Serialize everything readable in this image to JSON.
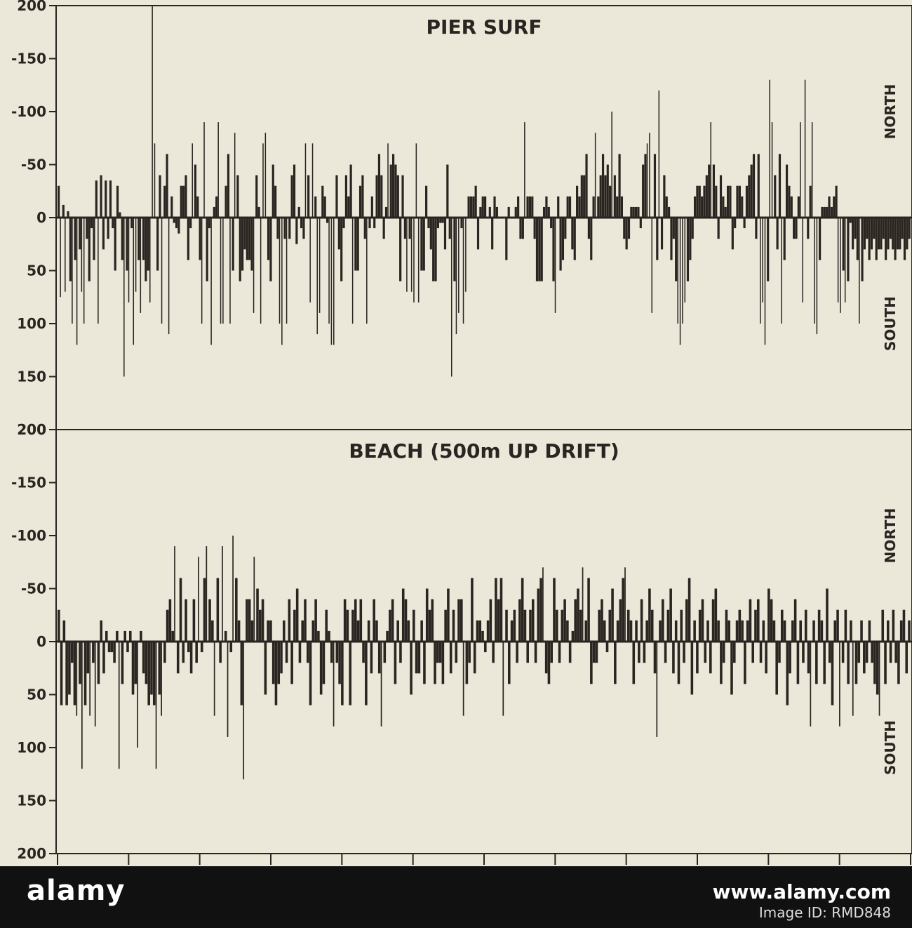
{
  "chart_data": [
    {
      "type": "bar",
      "title": "PIER SURF",
      "direction_labels": {
        "positive": "NORTH",
        "negative": "SOUTH"
      },
      "y_ticks": [
        {
          "value": 200,
          "label": "200"
        },
        {
          "value": 150,
          "label": "-150"
        },
        {
          "value": 100,
          "label": "-100"
        },
        {
          "value": 50,
          "label": "-50"
        },
        {
          "value": 0,
          "label": "0"
        },
        {
          "value": -50,
          "label": "50"
        },
        {
          "value": -100,
          "label": "100"
        },
        {
          "value": -150,
          "label": "150"
        },
        {
          "value": -200,
          "label": "200"
        }
      ],
      "ylim": [
        -200,
        200
      ],
      "series": [
        {
          "values": [
            30,
            -75,
            12,
            -70,
            6,
            -60,
            -100,
            -40,
            -120,
            -30,
            -70,
            -100,
            -20,
            -60,
            -10,
            -40,
            35,
            -100,
            40,
            -30,
            35,
            -20,
            35,
            -10,
            -50,
            30,
            5,
            -40,
            -150,
            -50,
            -80,
            -10,
            -120,
            -70,
            -40,
            -90,
            -40,
            -60,
            -50,
            -80,
            200,
            70,
            -50,
            40,
            -100,
            30,
            60,
            -110,
            20,
            -5,
            -10,
            -15,
            30,
            30,
            40,
            -40,
            -10,
            70,
            50,
            20,
            -40,
            -100,
            90,
            -60,
            -10,
            -120,
            10,
            20,
            90,
            -100,
            -100,
            30,
            60,
            -100,
            -50,
            80,
            40,
            -60,
            -50,
            -30,
            -40,
            -40,
            -50,
            -90,
            40,
            10,
            -100,
            70,
            80,
            -40,
            -60,
            50,
            30,
            -20,
            -100,
            -120,
            -20,
            -100,
            -20,
            40,
            50,
            -25,
            10,
            -10,
            -20,
            70,
            40,
            -80,
            70,
            20,
            -110,
            -90,
            30,
            20,
            -5,
            -100,
            -120,
            -120,
            40,
            -30,
            -60,
            -10,
            40,
            20,
            50,
            -100,
            -50,
            -50,
            30,
            40,
            -20,
            -100,
            -10,
            20,
            -10,
            40,
            60,
            40,
            -20,
            10,
            70,
            50,
            60,
            50,
            40,
            -60,
            40,
            -20,
            -70,
            -20,
            -70,
            -80,
            70,
            -80,
            -50,
            -50,
            30,
            -10,
            -30,
            -60,
            -60,
            -10,
            -5,
            -5,
            -30,
            50,
            -20,
            -150,
            -60,
            -110,
            -90,
            -10,
            -100,
            -70,
            20,
            20,
            20,
            30,
            -30,
            10,
            20,
            20,
            0,
            10,
            -30,
            20,
            10,
            0,
            0,
            0,
            -40,
            10,
            0,
            0,
            10,
            20,
            -20,
            -20,
            90,
            20,
            20,
            20,
            -20,
            -60,
            -60,
            -60,
            10,
            20,
            10,
            -10,
            -60,
            -90,
            20,
            -50,
            -40,
            -20,
            20,
            20,
            -30,
            -40,
            30,
            20,
            40,
            40,
            60,
            -20,
            -40,
            20,
            80,
            20,
            40,
            60,
            40,
            50,
            30,
            100,
            40,
            20,
            60,
            20,
            -20,
            -30,
            -20,
            10,
            10,
            10,
            10,
            -10,
            50,
            60,
            70,
            80,
            -90,
            60,
            -40,
            120,
            -30,
            40,
            20,
            10,
            -40,
            -20,
            -60,
            -100,
            -120,
            -100,
            -80,
            -60,
            -40,
            -20,
            20,
            30,
            30,
            20,
            30,
            40,
            50,
            90,
            50,
            30,
            -20,
            40,
            20,
            10,
            30,
            30,
            -30,
            -10,
            30,
            30,
            20,
            -10,
            30,
            40,
            50,
            60,
            -20,
            60,
            -100,
            -80,
            -120,
            -60,
            130,
            90,
            40,
            -30,
            60,
            -100,
            -40,
            50,
            30,
            20,
            -20,
            -20,
            20,
            90,
            -80,
            130,
            -20,
            30,
            90,
            -100,
            -110,
            -40,
            10,
            10,
            10,
            20,
            10,
            20,
            30,
            -80,
            -90,
            -50,
            -80,
            -60,
            -5,
            -30,
            -20,
            -40,
            -100,
            -60,
            -30,
            -20,
            -40,
            -30,
            -20,
            -40,
            -30,
            -30,
            -20,
            -40,
            -30,
            -20,
            -30,
            -40,
            -30,
            -30,
            -20,
            -40,
            -30,
            -20
          ]
        }
      ]
    },
    {
      "type": "bar",
      "title": "BEACH (500m UP DRIFT)",
      "direction_labels": {
        "positive": "NORTH",
        "negative": "SOUTH"
      },
      "y_ticks": [
        {
          "value": 200,
          "label": "200"
        },
        {
          "value": 150,
          "label": "-150"
        },
        {
          "value": 100,
          "label": "-100"
        },
        {
          "value": 50,
          "label": "-50"
        },
        {
          "value": 0,
          "label": "0"
        },
        {
          "value": -50,
          "label": "50"
        },
        {
          "value": -100,
          "label": "100"
        },
        {
          "value": -150,
          "label": "150"
        },
        {
          "value": -200,
          "label": "200"
        }
      ],
      "ylim": [
        -200,
        200
      ],
      "series": [
        {
          "values": [
            30,
            -60,
            20,
            -60,
            -50,
            -20,
            -60,
            -70,
            -40,
            -120,
            -60,
            -30,
            -70,
            -20,
            -80,
            -40,
            20,
            -30,
            10,
            -10,
            -10,
            -20,
            10,
            -120,
            -40,
            10,
            -10,
            10,
            -50,
            -40,
            -100,
            10,
            -30,
            -40,
            -60,
            -50,
            -60,
            -120,
            -50,
            -70,
            -20,
            30,
            40,
            10,
            90,
            -30,
            60,
            -20,
            40,
            -10,
            -30,
            40,
            -20,
            80,
            -10,
            60,
            90,
            40,
            20,
            -70,
            60,
            -20,
            90,
            10,
            -90,
            -10,
            100,
            60,
            20,
            -60,
            -130,
            40,
            40,
            20,
            80,
            50,
            30,
            40,
            -50,
            20,
            20,
            -40,
            -60,
            -40,
            -30,
            20,
            -20,
            40,
            -40,
            30,
            50,
            -20,
            20,
            40,
            -20,
            -60,
            20,
            40,
            10,
            -50,
            -40,
            30,
            10,
            -20,
            -80,
            -20,
            -40,
            -60,
            40,
            30,
            -60,
            30,
            40,
            20,
            40,
            -20,
            -60,
            20,
            -30,
            40,
            20,
            -30,
            -80,
            -20,
            10,
            30,
            40,
            -40,
            20,
            -20,
            50,
            40,
            20,
            -50,
            30,
            -30,
            -30,
            20,
            -40,
            50,
            30,
            40,
            -40,
            -20,
            -20,
            -40,
            30,
            50,
            -30,
            30,
            -20,
            40,
            40,
            -70,
            -40,
            -20,
            60,
            -30,
            20,
            20,
            10,
            -10,
            20,
            40,
            -20,
            60,
            40,
            60,
            -70,
            30,
            -40,
            20,
            30,
            -20,
            40,
            60,
            30,
            -20,
            30,
            40,
            -20,
            50,
            60,
            70,
            -30,
            -40,
            -20,
            60,
            30,
            -20,
            30,
            40,
            20,
            -20,
            10,
            40,
            50,
            30,
            70,
            20,
            60,
            -40,
            -20,
            -20,
            30,
            40,
            20,
            -10,
            30,
            50,
            -40,
            20,
            40,
            60,
            70,
            30,
            20,
            -40,
            20,
            -20,
            40,
            -20,
            20,
            50,
            30,
            -30,
            -90,
            20,
            40,
            -20,
            30,
            50,
            -30,
            20,
            -40,
            30,
            -20,
            40,
            60,
            -50,
            20,
            -30,
            30,
            40,
            -20,
            20,
            -30,
            40,
            50,
            20,
            -40,
            -20,
            30,
            20,
            -50,
            -20,
            20,
            30,
            20,
            -40,
            20,
            40,
            -20,
            30,
            40,
            -20,
            20,
            -30,
            50,
            40,
            20,
            -50,
            -20,
            30,
            20,
            -60,
            -30,
            20,
            40,
            -40,
            20,
            -20,
            30,
            -30,
            -80,
            20,
            -40,
            30,
            20,
            -40,
            50,
            -20,
            -60,
            20,
            30,
            -80,
            -20,
            30,
            -40,
            20,
            -70,
            -40,
            -20,
            20,
            -30,
            -20,
            20,
            -20,
            -40,
            -50,
            -70,
            30,
            -40,
            20,
            -20,
            30,
            -20,
            -40,
            20,
            30,
            -30,
            20
          ]
        }
      ]
    }
  ],
  "watermark": {
    "brand": "alamy",
    "url": "www.alamy.com",
    "image_id": "Image ID: RMD848"
  }
}
